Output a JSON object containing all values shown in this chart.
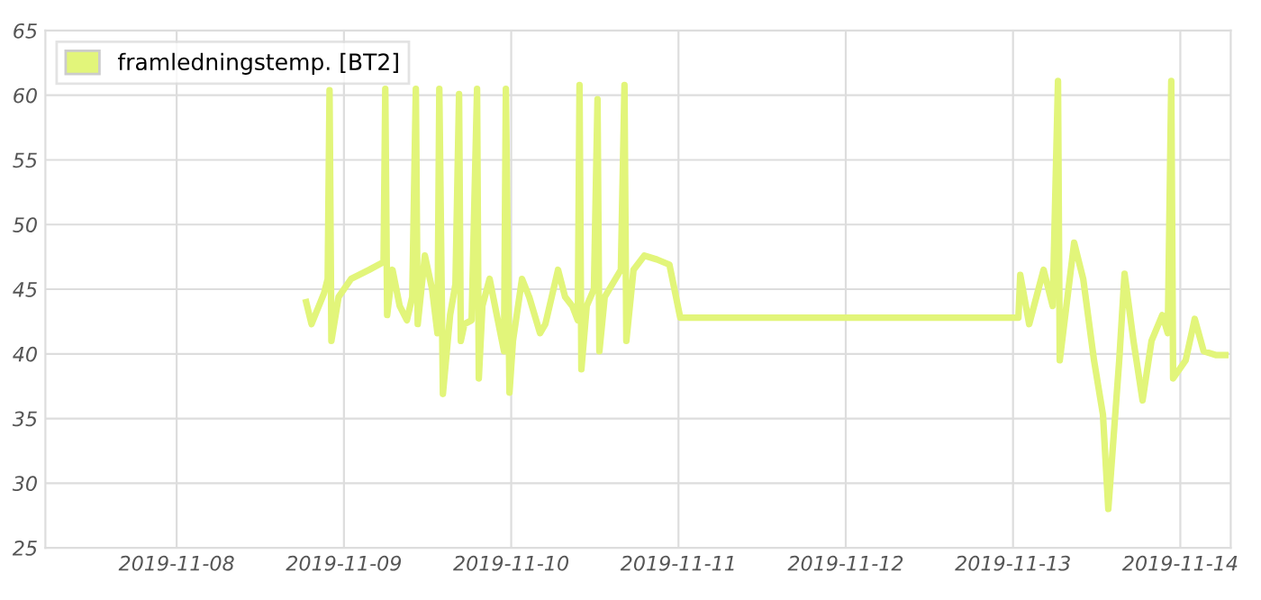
{
  "chart_data": {
    "type": "line",
    "x": [
      "2019-11-08T18:35",
      "2019-11-08T19:21",
      "2019-11-08T21:09",
      "2019-11-08T21:40",
      "2019-11-08T21:56",
      "2019-11-08T22:12",
      "2019-11-08T23:14",
      "2019-11-09T01:02",
      "2019-11-09T03:37",
      "2019-11-09T05:41",
      "2019-11-09T05:56",
      "2019-11-09T06:12",
      "2019-11-09T06:58",
      "2019-11-09T08:00",
      "2019-11-09T09:02",
      "2019-11-09T09:48",
      "2019-11-09T10:19",
      "2019-11-09T10:35",
      "2019-11-09T11:37",
      "2019-11-09T12:39",
      "2019-11-09T13:25",
      "2019-11-09T13:41",
      "2019-11-09T14:12",
      "2019-11-09T15:14",
      "2019-11-09T16:00",
      "2019-11-09T16:31",
      "2019-11-09T16:46",
      "2019-11-09T17:17",
      "2019-11-09T18:19",
      "2019-11-09T19:06",
      "2019-11-09T19:21",
      "2019-11-09T19:52",
      "2019-11-09T20:54",
      "2019-11-09T21:56",
      "2019-11-09T22:58",
      "2019-11-09T23:14",
      "2019-11-09T23:45",
      "2019-11-10T00:15",
      "2019-11-10T01:33",
      "2019-11-10T02:35",
      "2019-11-10T04:08",
      "2019-11-10T04:54",
      "2019-11-10T06:43",
      "2019-11-10T07:44",
      "2019-11-10T08:46",
      "2019-11-10T09:33",
      "2019-11-10T09:48",
      "2019-11-10T10:04",
      "2019-11-10T10:50",
      "2019-11-10T11:52",
      "2019-11-10T12:23",
      "2019-11-10T12:39",
      "2019-11-10T13:25",
      "2019-11-10T15:44",
      "2019-11-10T16:15",
      "2019-11-10T16:31",
      "2019-11-10T17:33",
      "2019-11-10T19:06",
      "2019-11-10T20:54",
      "2019-11-10T22:42",
      "2019-11-11T00:15",
      "2019-11-13T00:46",
      "2019-11-13T01:02",
      "2019-11-13T02:19",
      "2019-11-13T04:23",
      "2019-11-13T05:41",
      "2019-11-13T06:27",
      "2019-11-13T06:42",
      "2019-11-13T08:46",
      "2019-11-13T10:04",
      "2019-11-13T11:37",
      "2019-11-13T12:54",
      "2019-11-13T13:40",
      "2019-11-13T15:14",
      "2019-11-13T16:00",
      "2019-11-13T17:17",
      "2019-11-13T18:35",
      "2019-11-13T19:52",
      "2019-11-13T21:25",
      "2019-11-13T22:12",
      "2019-11-13T22:42",
      "2019-11-13T22:58",
      "2019-11-14T00:46",
      "2019-11-14T02:04",
      "2019-11-14T03:21",
      "2019-11-14T05:10",
      "2019-11-14T06:27"
    ],
    "series": [
      {
        "name": "framledningstemp. [BT2]",
        "color": "#e2f57a",
        "values": [
          44,
          42.3,
          44.7,
          45.8,
          60.4,
          41,
          44.4,
          45.8,
          46.5,
          47.1,
          60.5,
          43,
          46.5,
          43.7,
          42.6,
          44.4,
          60.5,
          42.3,
          47.6,
          45,
          41.6,
          60.5,
          36.9,
          43,
          45.4,
          60.1,
          41,
          42.3,
          42.6,
          60.5,
          38.1,
          43.7,
          45.8,
          43,
          40.2,
          60.5,
          37,
          41,
          45.8,
          44.4,
          41.6,
          42.3,
          46.5,
          44.4,
          43.7,
          42.6,
          60.8,
          38.8,
          43.7,
          45,
          59.7,
          40.2,
          44.4,
          46.5,
          60.8,
          41,
          46.5,
          47.6,
          47.3,
          46.9,
          42.8,
          42.8,
          46.1,
          42.3,
          46.5,
          43.7,
          61.1,
          39.5,
          48.6,
          45.8,
          39.5,
          35.3,
          28,
          39.5,
          46.2,
          41,
          36.4,
          41,
          43,
          41.6,
          61.1,
          38.1,
          39.5,
          42.7,
          40.2,
          39.9,
          39.9
        ]
      }
    ],
    "xlim": [
      "2019-11-07T05:10",
      "2019-11-14T07:14"
    ],
    "xticks": [
      {
        "value": "2019-11-08",
        "label": "2019-11-08"
      },
      {
        "value": "2019-11-09",
        "label": "2019-11-09"
      },
      {
        "value": "2019-11-10",
        "label": "2019-11-10"
      },
      {
        "value": "2019-11-11",
        "label": "2019-11-11"
      },
      {
        "value": "2019-11-12",
        "label": "2019-11-12"
      },
      {
        "value": "2019-11-13",
        "label": "2019-11-13"
      },
      {
        "value": "2019-11-14",
        "label": "2019-11-14"
      }
    ],
    "ylim": [
      25,
      65
    ],
    "yticks": [
      25,
      30,
      35,
      40,
      45,
      50,
      55,
      60,
      65
    ],
    "grid": true,
    "legend": "top left",
    "marker": "none",
    "line_style": "solid"
  }
}
